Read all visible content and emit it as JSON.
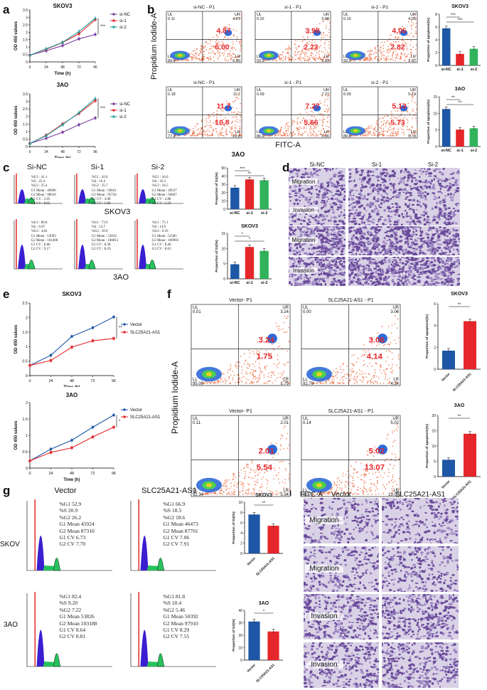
{
  "figure_labels": {
    "a": "a",
    "b": "b",
    "c": "c",
    "d": "d",
    "e": "e",
    "f": "f",
    "g": "g",
    "h": "h"
  },
  "colors": {
    "si_nc": "#1d57a6",
    "si_1": "#e5262a",
    "si_2": "#30b35a",
    "vector": "#1d57a6",
    "slc": "#e5262a",
    "flow_red": "#e5262a"
  },
  "panel_a": {
    "charts": [
      {
        "title": "SKOV3",
        "xlabel": "Time (h)",
        "ylabel": "OD 450 values",
        "sig": "***",
        "x": [
          0,
          24,
          48,
          72,
          96
        ],
        "yticks": [
          0,
          0.5,
          1,
          1.5,
          2,
          2.5,
          3,
          3.5
        ],
        "ylim": [
          0,
          3.5
        ],
        "series": [
          {
            "name": "si-NC",
            "color": "#7b3fa0",
            "values": [
              0.45,
              0.75,
              1.1,
              1.55,
              1.85
            ]
          },
          {
            "name": "si-1",
            "color": "#e5262a",
            "values": [
              0.45,
              0.85,
              1.3,
              1.9,
              2.85
            ]
          },
          {
            "name": "si-2",
            "color": "#20a3a3",
            "values": [
              0.45,
              0.88,
              1.32,
              2.05,
              2.95
            ]
          }
        ]
      },
      {
        "title": "3AO",
        "xlabel": "Time (h)",
        "ylabel": "OD 450 values",
        "sig": "***",
        "x": [
          0,
          24,
          48,
          72,
          96
        ],
        "yticks": [
          0,
          0.5,
          1,
          1.5,
          2,
          2.5,
          3,
          3.5
        ],
        "ylim": [
          0,
          3.5
        ],
        "series": [
          {
            "name": "si-NC",
            "color": "#7b3fa0",
            "values": [
              0.2,
              0.55,
              0.95,
              1.45,
              1.9
            ]
          },
          {
            "name": "si-1",
            "color": "#e5262a",
            "values": [
              0.2,
              0.75,
              1.5,
              2.2,
              3.05
            ]
          },
          {
            "name": "si-2",
            "color": "#20a3a3",
            "values": [
              0.2,
              0.72,
              1.45,
              2.25,
              3.2
            ]
          }
        ]
      }
    ]
  },
  "panel_b": {
    "yaxis": "Propidium Iodide-A",
    "xaxis": "FITC-A",
    "cell_label": "3AO",
    "rows": [
      [
        {
          "title": "si-NC - P1",
          "UL": "0.11",
          "UR": "4.87",
          "LL": "89.0",
          "LR": "6.00",
          "ur_big": "4.87",
          "lr_big": "6.00"
        },
        {
          "title": "si-1 - P1",
          "UL": "0.22",
          "UR": "3.98",
          "LL": "93.5",
          "LR": "2.23",
          "ur_big": "3.98",
          "lr_big": "2.23"
        },
        {
          "title": "si-2 - P1",
          "UL": "0.19",
          "UR": "4.05",
          "LL": "93.0",
          "LR": "2.82",
          "ur_big": "4.05",
          "lr_big": "2.82"
        }
      ],
      [
        {
          "title": "si-NC - P1",
          "UL": "0.18",
          "UR": "11.7",
          "LL": "77.2",
          "LR": "10.8",
          "ur_big": "11.7",
          "lr_big": "10.8"
        },
        {
          "title": "si-1 - P1",
          "UL": "0.09",
          "UR": "7.27",
          "LL": "86.9",
          "LR": "5.66",
          "ur_big": "7.27",
          "lr_big": "5.66"
        },
        {
          "title": "si-2 - P1",
          "UL": "0.09",
          "UR": "5.13",
          "LL": "89.0",
          "LR": "5.73",
          "ur_big": "5.13",
          "lr_big": "5.73"
        }
      ]
    ],
    "bars": [
      {
        "title": "SKOV3",
        "ylabel": "Proportion of apoptosis(%)",
        "categories": [
          "si-NC",
          "si-1",
          "si-2"
        ],
        "values": [
          5.8,
          1.8,
          2.6
        ],
        "ylim": [
          0,
          8
        ],
        "yticks": [
          0,
          2,
          4,
          6,
          8
        ],
        "sig": [
          "***",
          "***"
        ]
      },
      {
        "title": "3AO",
        "ylabel": "Proportion of apoptosis(%)",
        "categories": [
          "si-NC",
          "si-1",
          "si-2"
        ],
        "values": [
          11.3,
          5.1,
          5.5
        ],
        "ylim": [
          0,
          15
        ],
        "yticks": [
          0,
          5,
          10,
          15
        ],
        "sig": [
          "**",
          "**"
        ]
      }
    ]
  },
  "panel_c": {
    "top_titles": [
      "Si-NC",
      "Si-1",
      "Si-2"
    ],
    "mid_label": "SKOV3",
    "bottom_label": "3AO",
    "stats_top": [
      [
        "%G1 : 41.1",
        "%S : 25.4",
        "%G2 : 25.4",
        "G1 Mean : 49606",
        "G2 Mean : 98016",
        "G1 CV : 5.05",
        "G2 CV : 8.65"
      ],
      [
        "%G1 : 42.8",
        "%S : 16.4",
        "%G2 : 35.7",
        "G1 Mean : 50031",
        "G2 Mean : 95726",
        "G1 CV : 4.98",
        "G2 CV : 5.80"
      ],
      [
        "%G1 : 44.0",
        "%S : 16.3",
        "%G2 : 34.5",
        "G1 Mean : 49537",
        "G2 Mean : 94667",
        "G1 CV : 4.88",
        "G2 CV : 5.59"
      ]
    ],
    "stats_bottom": [
      [
        "%G1 : 86.8",
        "%S : 6.07",
        "%G2 : 4.82",
        "G1 Mean : 53093",
        "G2 Mean : 101408",
        "G1 CV : 8.86",
        "G2 CV : 9.17"
      ],
      [
        "%G1 : 73.9",
        "%S : 14.7",
        "%G2 : 10.9",
        "G1 Mean : 52034",
        "G2 Mean : 100815",
        "G1 CV : 8.38",
        "G2 CV : 8.29"
      ],
      [
        "%G1 : 75.1",
        "%S : 14.9",
        "%G2 : 9.16",
        "G1 Mean : 52381",
        "G2 Mean : 100905",
        "G1 CV : 8.46",
        "G2 CV : 8.01"
      ]
    ],
    "bars": [
      {
        "title": "",
        "ylabel": "Proportion of G2(%)",
        "categories": [
          "si-NC",
          "si-1",
          "si-2"
        ],
        "values": [
          26,
          36,
          35
        ],
        "ylim": [
          0,
          50
        ],
        "yticks": [
          0,
          10,
          20,
          30,
          40,
          50
        ],
        "sig": [
          "***",
          "**"
        ]
      },
      {
        "title": "SKOV3",
        "ylabel": "Proportion of G2(%)",
        "categories": [
          "si-NC",
          "si-1",
          "si-2"
        ],
        "values": [
          4.8,
          10.5,
          9.2
        ],
        "ylim": [
          0,
          15
        ],
        "yticks": [
          0,
          5,
          10,
          15
        ],
        "sig": [
          "*",
          "*"
        ]
      }
    ]
  },
  "panel_d": {
    "columns": [
      "Si-NC",
      "Si-1",
      "Si-2"
    ],
    "rows": [
      "Migration",
      "Invasion",
      "Migration",
      "Invasion"
    ]
  },
  "panel_e": {
    "charts": [
      {
        "title": "SKOV3",
        "xlabel": "Time (h)",
        "ylabel": "OD 450 values",
        "sig": "**",
        "x": [
          0,
          24,
          48,
          72,
          96
        ],
        "yticks": [
          0,
          0.5,
          1,
          1.5,
          2,
          2.5
        ],
        "ylim": [
          0,
          2.5
        ],
        "series": [
          {
            "name": "Vector",
            "color": "#1d57a6",
            "values": [
              0.35,
              0.7,
              1.35,
              1.65,
              2.02
            ]
          },
          {
            "name": "SLC25A21-AS1",
            "color": "#e5262a",
            "values": [
              0.35,
              0.52,
              0.98,
              1.2,
              1.28
            ]
          }
        ]
      },
      {
        "title": "3AO",
        "xlabel": "Time (h)",
        "ylabel": "OD 450 values",
        "sig": "*",
        "x": [
          0,
          24,
          48,
          72,
          96
        ],
        "yticks": [
          0,
          0.5,
          1,
          1.5,
          2
        ],
        "ylim": [
          0,
          2
        ],
        "series": [
          {
            "name": "Vector",
            "color": "#1d57a6",
            "values": [
              0.22,
              0.58,
              0.85,
              1.25,
              1.62
            ]
          },
          {
            "name": "SLC25A21-AS1",
            "color": "#e5262a",
            "values": [
              0.22,
              0.48,
              0.62,
              0.95,
              1.25
            ]
          }
        ]
      }
    ]
  },
  "panel_f": {
    "yaxis": "Propidium Iodide-A",
    "xaxis": "FITC-A",
    "rows": [
      [
        {
          "title": "Vector- P1",
          "UL": "0.01",
          "UR": "3.24",
          "LL": "95.00",
          "LR": "1.75",
          "ur_big": "3.24",
          "lr_big": "1.75"
        },
        {
          "title": "SLC25A21-AS1 - P1",
          "UL": "0.00",
          "UR": "3.06",
          "LL": "92.79",
          "LR": "4.14",
          "ur_big": "3.06",
          "lr_big": "4.14"
        }
      ],
      [
        {
          "title": "Vector- P1",
          "UL": "0.11",
          "UR": "2.01",
          "LL": "92.34",
          "LR": "5.54",
          "ur_big": "2.01",
          "lr_big": "5.54"
        },
        {
          "title": "SLC25A21-AS1 - P1",
          "UL": "0.14",
          "UR": "5.02",
          "LL": "81.77",
          "LR": "13.07",
          "ur_big": "5.02",
          "lr_big": "13.07"
        }
      ]
    ],
    "bars": [
      {
        "title": "SKOV3",
        "ylabel": "Proportion of apoptosis(%)",
        "categories": [
          "Vector",
          "SLC25A21-AS1"
        ],
        "values": [
          1.7,
          4.4
        ],
        "ylim": [
          0,
          6
        ],
        "yticks": [
          0,
          2,
          4,
          6
        ],
        "sig": [
          "**"
        ]
      },
      {
        "title": "3AO",
        "ylabel": "Proportion of apoptosis(%)",
        "categories": [
          "Vector",
          "SLC25A21-AS1"
        ],
        "values": [
          5.5,
          14.0
        ],
        "ylim": [
          0,
          20
        ],
        "yticks": [
          0,
          5,
          10,
          15,
          20
        ],
        "sig": [
          "**"
        ]
      }
    ]
  },
  "panel_g": {
    "titles": [
      "Vector",
      "SLC25A21-AS1"
    ],
    "row_labels": [
      "SKOV3",
      "3AO"
    ],
    "stats": [
      [
        [
          "%G1  52.9",
          "%S  20.9",
          "%G2  26.2",
          "G1 Mean  45924",
          "G2 Mean  87310",
          "G1 CV  6.73",
          "G2 CV  7.70"
        ],
        [
          "%G1  66.9",
          "%S  18.5",
          "%G2  18.6",
          "G1 Mean  46473",
          "G2 Mean  87701",
          "G1 CV  7.06",
          "G2 CV  7.91"
        ]
      ],
      [
        [
          "%G1  82.4",
          "%S  9.20",
          "%G2  7.22",
          "G1 Mean  53826",
          "G2 Mean  103188",
          "G1 CV  8.64",
          "G2 CV  8.81"
        ],
        [
          "%G1  81.8",
          "%S  10.4",
          "%G2  5.46",
          "G1 Mean  50392",
          "G2 Mean  97910",
          "G1 CV  8.29",
          "G2 CV  7.55"
        ]
      ]
    ],
    "bars": [
      {
        "title": "SKOV3",
        "ylabel": "Proportion of G2(%)",
        "categories": [
          "Vector",
          "SLC25A21-AS1"
        ],
        "values": [
          7.6,
          5.4
        ],
        "ylim": [
          0,
          10
        ],
        "yticks": [
          0,
          2,
          4,
          6,
          8,
          10
        ],
        "sig": [
          "**"
        ]
      },
      {
        "title": "3AO",
        "ylabel": "Proportion of G2(%)",
        "categories": [
          "Vector",
          "SLC25A21-AS1"
        ],
        "values": [
          31,
          23
        ],
        "ylim": [
          0,
          40
        ],
        "yticks": [
          0,
          10,
          20,
          30,
          40
        ],
        "sig": [
          "*"
        ]
      }
    ]
  },
  "panel_h": {
    "columns": [
      "Vector",
      "SLC25A21-AS1"
    ],
    "rows": [
      "Migration",
      "Migration",
      "Invasion",
      "Invasion"
    ],
    "corner": "FITC-A"
  }
}
